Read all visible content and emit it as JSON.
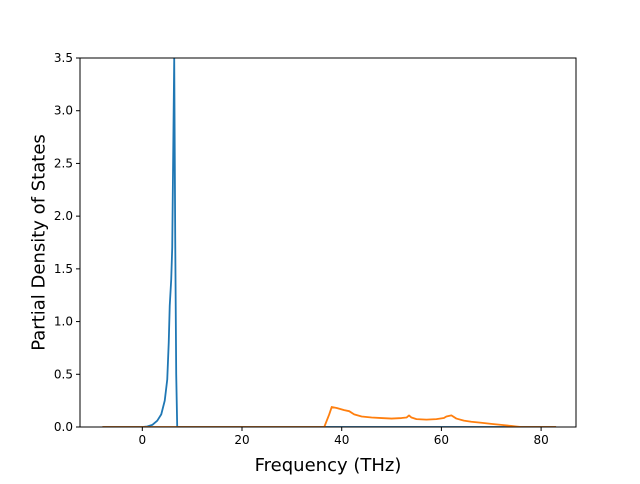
{
  "chart_data": {
    "type": "line",
    "title": "",
    "xlabel": "Frequency (THz)",
    "ylabel": "Partial Density of States",
    "xlim": [
      -12.5,
      87
    ],
    "ylim": [
      0,
      3.5
    ],
    "xticks": [
      0,
      20,
      40,
      60,
      80
    ],
    "yticks": [
      0.0,
      0.5,
      1.0,
      1.5,
      2.0,
      2.5,
      3.0,
      3.5
    ],
    "ytick_labels": [
      "0.0",
      "0.5",
      "1.0",
      "1.5",
      "2.0",
      "2.5",
      "3.0",
      "3.5"
    ],
    "grid": false,
    "legend": "none",
    "series": [
      {
        "color": "#1f77b4",
        "points": [
          [
            -8,
            0
          ],
          [
            0,
            0
          ],
          [
            1,
            0.005
          ],
          [
            2,
            0.02
          ],
          [
            3,
            0.06
          ],
          [
            3.8,
            0.12
          ],
          [
            4.5,
            0.25
          ],
          [
            5.0,
            0.45
          ],
          [
            5.3,
            0.8
          ],
          [
            5.5,
            1.15
          ],
          [
            5.8,
            1.4
          ],
          [
            6.0,
            1.7
          ],
          [
            6.2,
            2.6
          ],
          [
            6.4,
            3.5
          ],
          [
            6.6,
            1.8
          ],
          [
            6.8,
            0.5
          ],
          [
            7.0,
            0
          ],
          [
            83,
            0
          ]
        ]
      },
      {
        "color": "#ff7f0e",
        "points": [
          [
            -8,
            0
          ],
          [
            36.5,
            0
          ],
          [
            37.5,
            0.12
          ],
          [
            38.0,
            0.19
          ],
          [
            39.0,
            0.18
          ],
          [
            40.5,
            0.16
          ],
          [
            41.5,
            0.15
          ],
          [
            42.5,
            0.12
          ],
          [
            44,
            0.1
          ],
          [
            46,
            0.09
          ],
          [
            48,
            0.085
          ],
          [
            50,
            0.08
          ],
          [
            52,
            0.085
          ],
          [
            53.0,
            0.09
          ],
          [
            53.5,
            0.11
          ],
          [
            54.0,
            0.09
          ],
          [
            55,
            0.075
          ],
          [
            57,
            0.07
          ],
          [
            59,
            0.075
          ],
          [
            60.5,
            0.085
          ],
          [
            61.0,
            0.1
          ],
          [
            62.0,
            0.11
          ],
          [
            63.0,
            0.08
          ],
          [
            64.5,
            0.06
          ],
          [
            66,
            0.05
          ],
          [
            68,
            0.04
          ],
          [
            70,
            0.03
          ],
          [
            72,
            0.02
          ],
          [
            74,
            0.01
          ],
          [
            75,
            0.005
          ],
          [
            76,
            0
          ],
          [
            83,
            0
          ]
        ]
      }
    ]
  }
}
